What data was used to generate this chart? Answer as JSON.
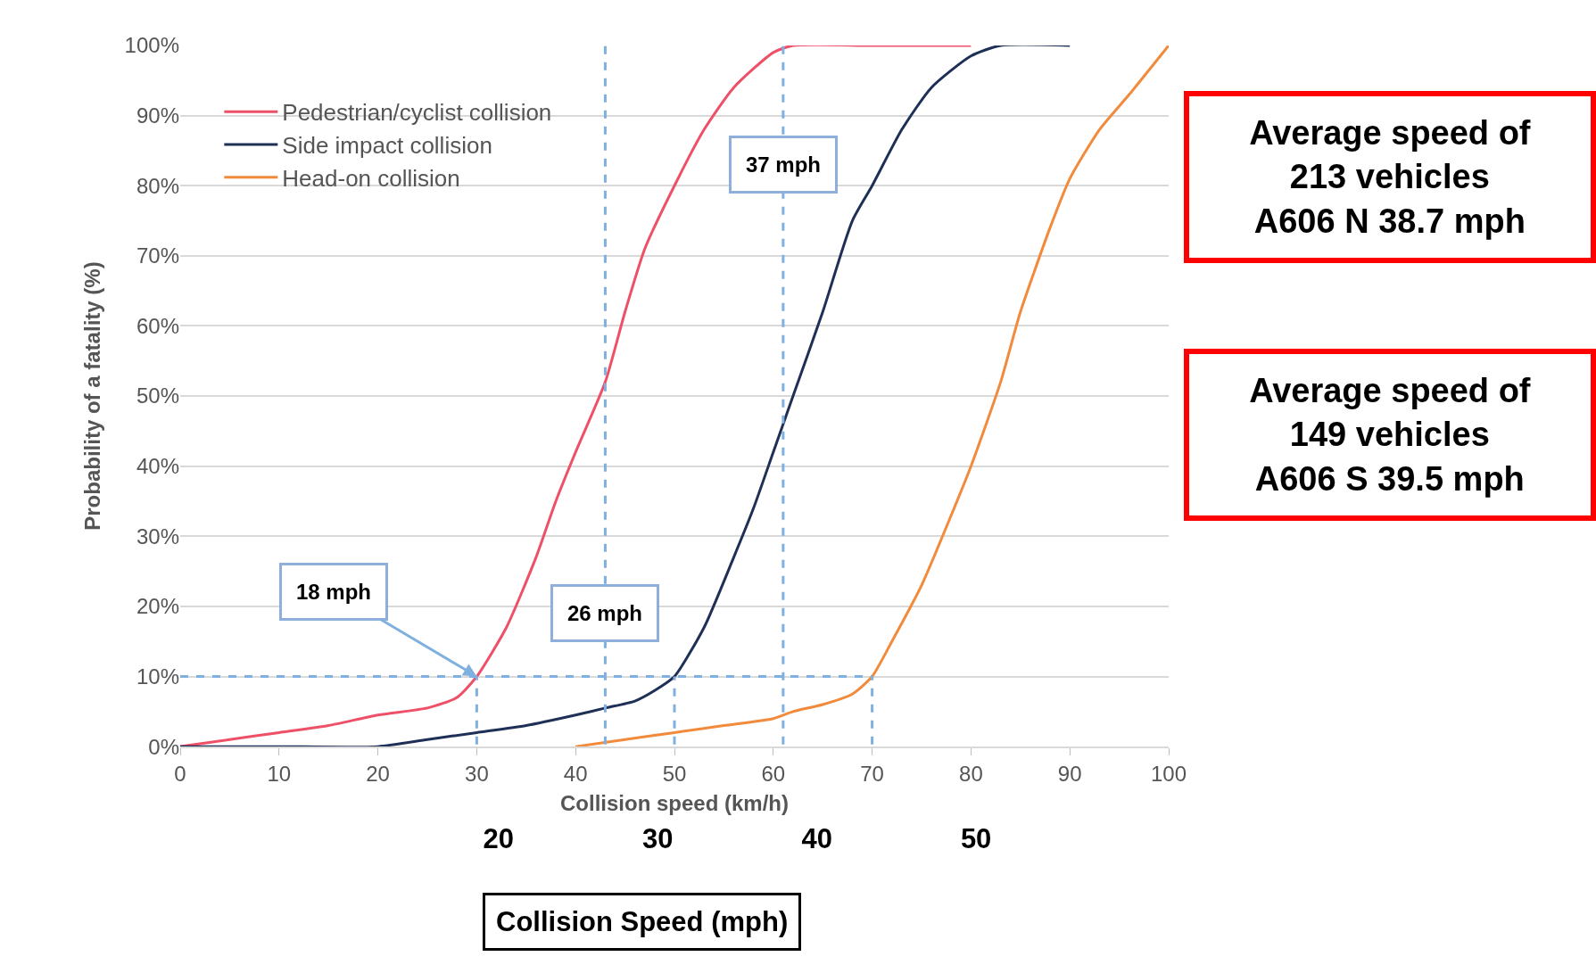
{
  "chart_data": {
    "type": "line",
    "xlabel": "Collision speed (km/h)",
    "ylabel": "Probability of a fatality (%)",
    "x2label": "Collision Speed (mph)",
    "xlim": [
      0,
      100
    ],
    "xticks": [
      0,
      10,
      20,
      30,
      40,
      50,
      60,
      70,
      80,
      90,
      100
    ],
    "ylim": [
      0,
      100
    ],
    "yticks": [
      {
        "value": 0,
        "label": "0%"
      },
      {
        "value": 10,
        "label": "10%"
      },
      {
        "value": 20,
        "label": "20%"
      },
      {
        "value": 30,
        "label": "30%"
      },
      {
        "value": 40,
        "label": "40%"
      },
      {
        "value": 50,
        "label": "50%"
      },
      {
        "value": 60,
        "label": "60%"
      },
      {
        "value": 70,
        "label": "70%"
      },
      {
        "value": 80,
        "label": "80%"
      },
      {
        "value": 90,
        "label": "90%"
      },
      {
        "value": 100,
        "label": "100%"
      }
    ],
    "x2lim": [
      0,
      62.1
    ],
    "x2ticks": [
      20,
      30,
      40,
      50
    ],
    "grid": "y",
    "legend": "top left",
    "line_style": "solid",
    "marker": "none",
    "series": [
      {
        "name": "Pedestrian/cyclist collision",
        "color": "#ee5068",
        "x": [
          0,
          5,
          10,
          15,
          20,
          25,
          28,
          30,
          33,
          36,
          38,
          40,
          43,
          45,
          47,
          50,
          53,
          56,
          60,
          62,
          70,
          80
        ],
        "values": [
          0,
          1,
          2,
          3,
          4.5,
          5.5,
          7,
          10,
          17,
          27,
          35,
          42,
          52,
          62,
          71,
          80,
          88,
          94,
          99,
          100,
          100,
          100
        ]
      },
      {
        "name": "Side impact collision",
        "color": "#1f3057",
        "x": [
          0,
          10,
          20,
          25,
          30,
          35,
          40,
          43,
          46,
          48,
          50,
          53,
          56,
          58,
          60,
          62,
          65,
          68,
          70,
          73,
          76,
          80,
          83,
          90
        ],
        "values": [
          0,
          0,
          0,
          1,
          2,
          3,
          4.5,
          5.5,
          6.5,
          8,
          10,
          17,
          27,
          34,
          42,
          50,
          62,
          75,
          80,
          88,
          94,
          98.5,
          100,
          100
        ]
      },
      {
        "name": "Head-on collision",
        "color": "#f28a3c",
        "x": [
          40,
          45,
          50,
          55,
          60,
          62,
          65,
          68,
          70,
          72,
          75,
          78,
          80,
          83,
          85,
          88,
          90,
          93,
          96,
          100
        ],
        "values": [
          0,
          1,
          2,
          3,
          4,
          5,
          6,
          7.5,
          10,
          15,
          23,
          33,
          40,
          52,
          62,
          74,
          81,
          88,
          93,
          100
        ]
      }
    ],
    "ref_lines": [
      {
        "axis": "y",
        "value": 10,
        "color": "#7fb0e0",
        "line_style": "dashed"
      },
      {
        "axis": "x",
        "value": 30,
        "color": "#7fb0e0",
        "line_style": "dashed"
      },
      {
        "axis": "x",
        "value": 43,
        "label": "26 mph",
        "color": "#7fb0e0",
        "line_style": "dashed"
      },
      {
        "axis": "x",
        "value": 50,
        "color": "#7fb0e0",
        "line_style": "dashed"
      },
      {
        "axis": "x",
        "value": 61,
        "label": "37 mph",
        "color": "#7fb0e0",
        "line_style": "dashed"
      },
      {
        "axis": "x",
        "value": 70,
        "color": "#7fb0e0",
        "line_style": "dashed"
      }
    ],
    "annotations": [
      {
        "text": "18 mph",
        "x": 30,
        "y": 10
      },
      "Average speed of\n213 vehicles\nA606 N 38.7 mph",
      "Average speed of\n149 vehicles\nA606 S 39.5 mph"
    ]
  }
}
